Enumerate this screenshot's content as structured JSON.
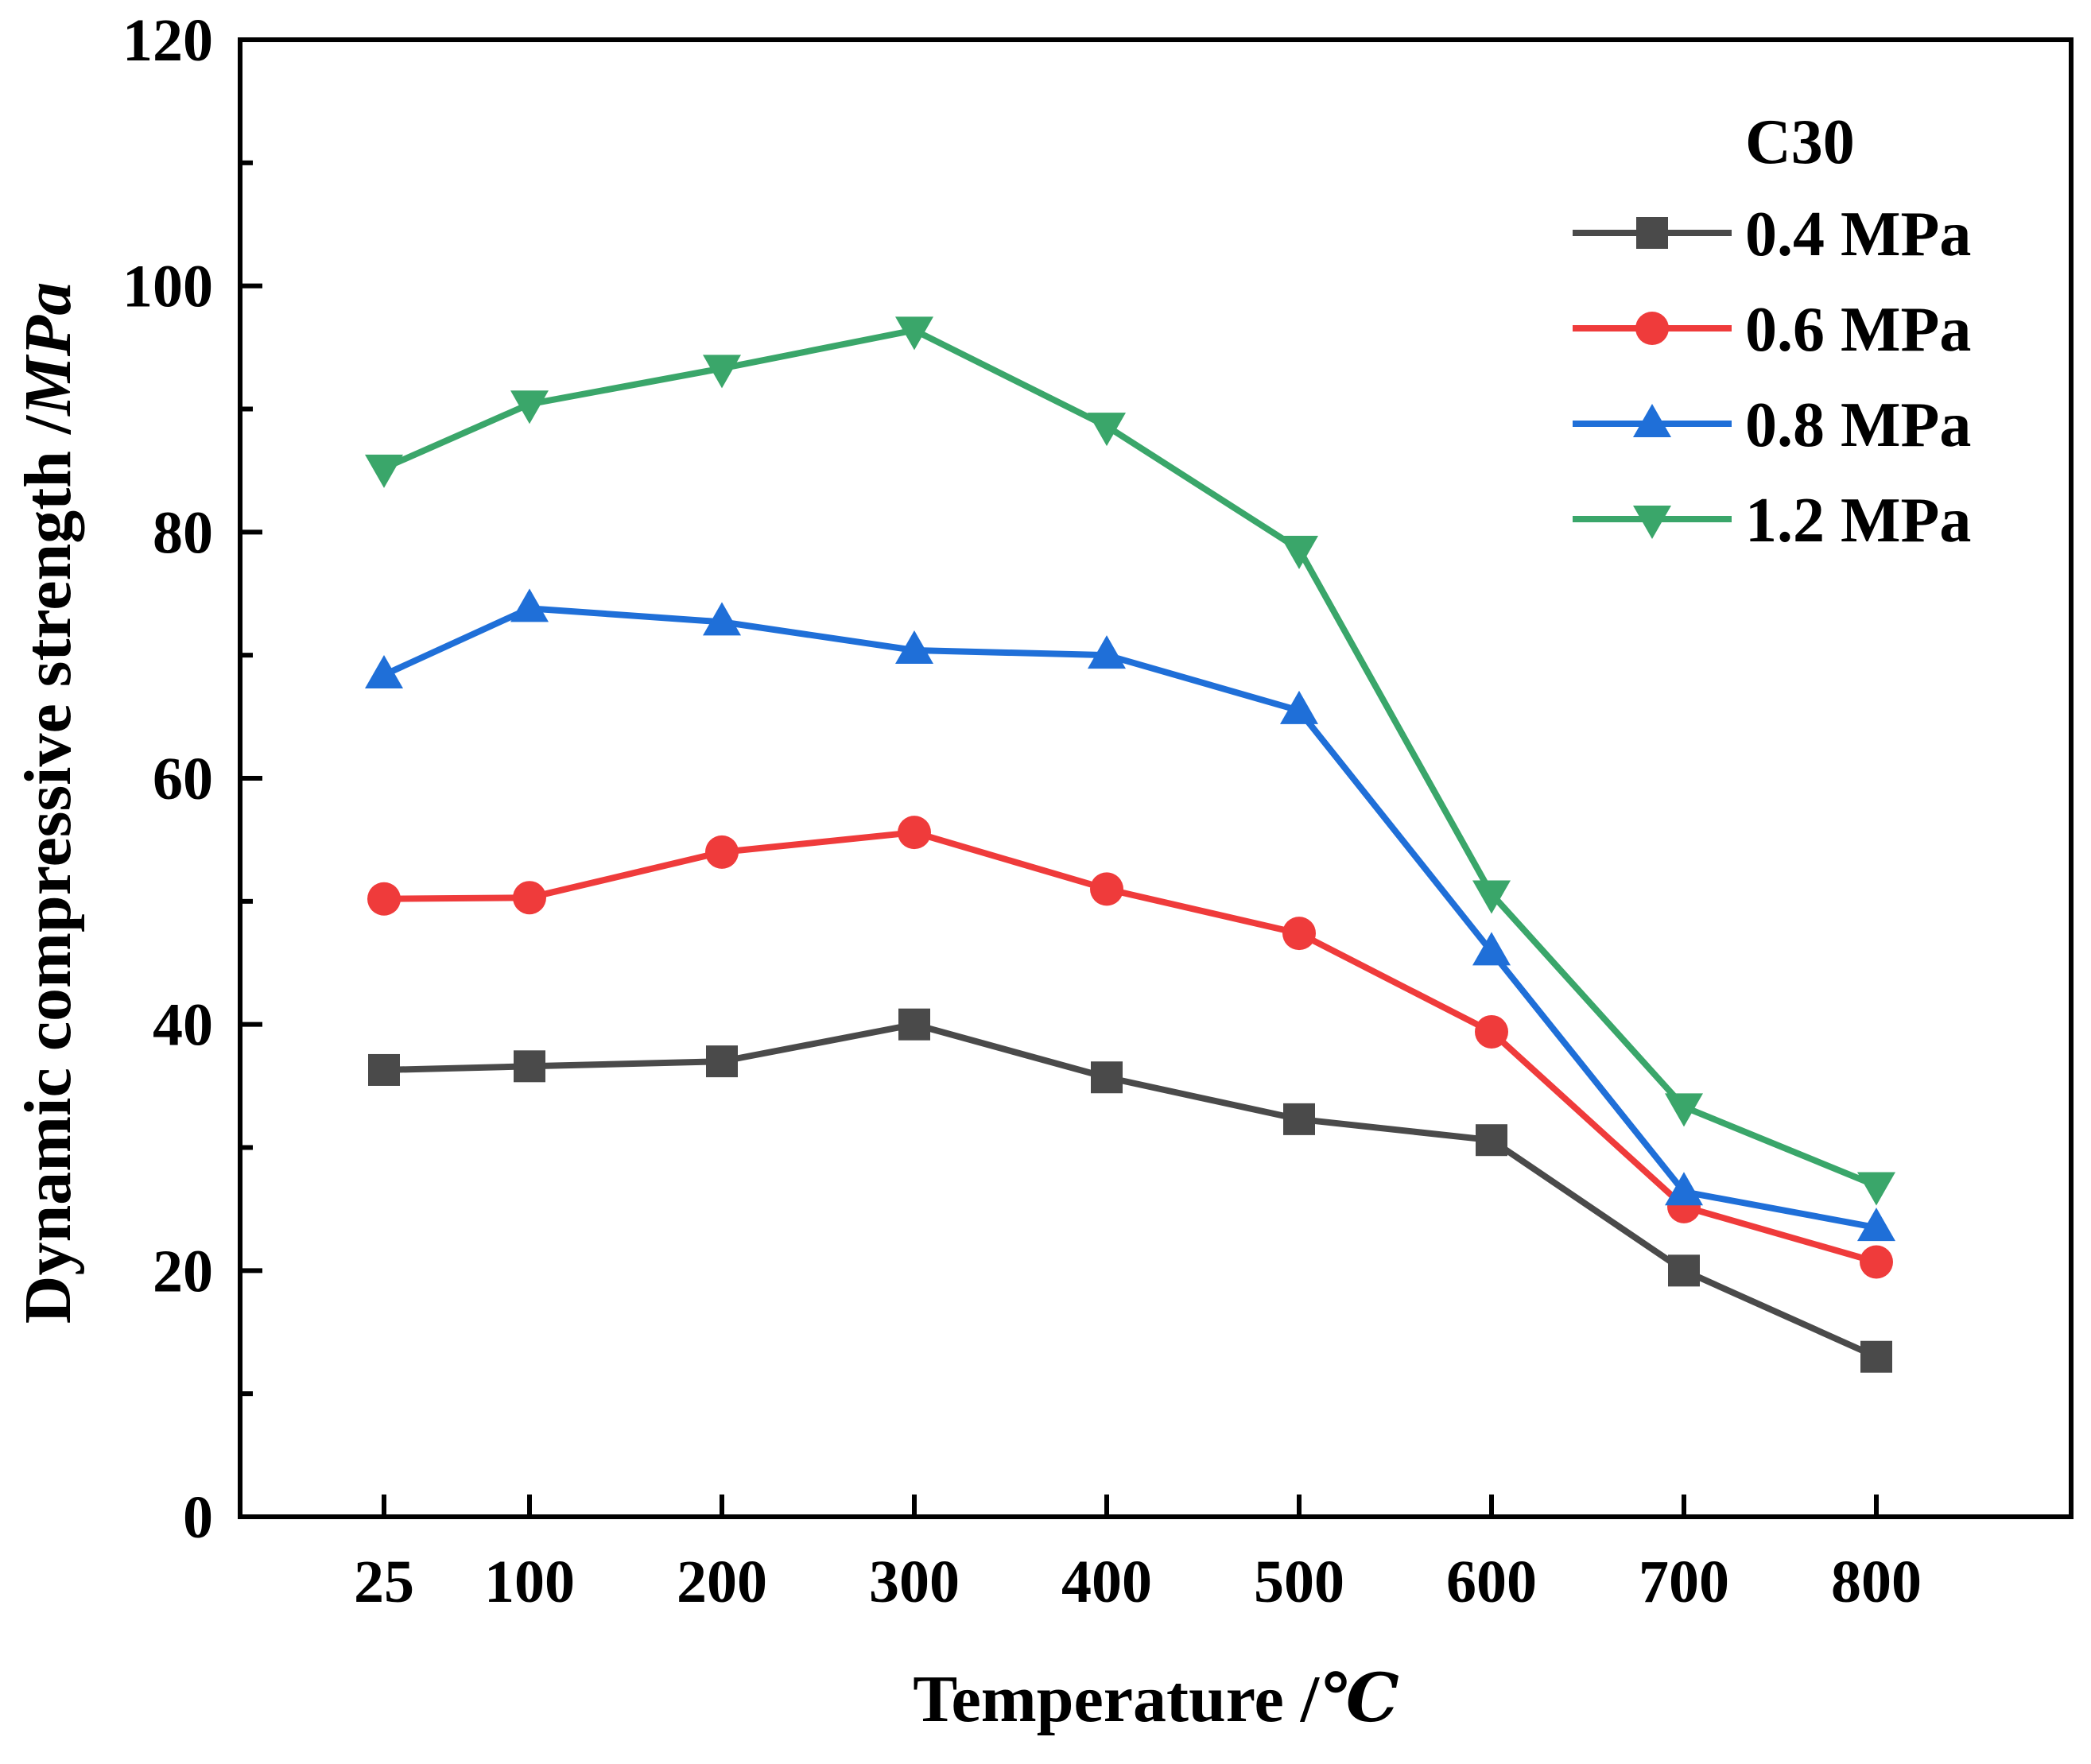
{
  "chart_data": {
    "type": "line",
    "title": "",
    "xlabel": "Temperature /℃",
    "xlabel_main": "Temperature /",
    "xlabel_unit": "℃",
    "ylabel": "Dynamic compressive strength /MPa",
    "ylabel_main": "Dynamic compressive strength /",
    "ylabel_unit": "MPa",
    "x": [
      25,
      100,
      200,
      300,
      400,
      500,
      600,
      700,
      800
    ],
    "x_tick_labels": [
      "25",
      "100",
      "200",
      "300",
      "400",
      "500",
      "600",
      "700",
      "800"
    ],
    "xlim": [
      -50,
      900
    ],
    "ylim": [
      0,
      120
    ],
    "y_tick_labels": [
      "0",
      "20",
      "40",
      "60",
      "80",
      "100",
      "120"
    ],
    "y_ticks": [
      0,
      20,
      40,
      60,
      80,
      100,
      120
    ],
    "legend_title": "C30",
    "legend_position": "top-right",
    "series": [
      {
        "name": "0.4 MPa",
        "color": "#4a4a4a",
        "marker": "square",
        "values": [
          36.3,
          36.6,
          37.0,
          40.0,
          35.7,
          32.3,
          30.6,
          20.0,
          13.0
        ]
      },
      {
        "name": "0.6 MPa",
        "color": "#ef3b3b",
        "marker": "circle",
        "values": [
          50.2,
          50.3,
          54.0,
          55.6,
          51.0,
          47.4,
          39.4,
          25.2,
          20.7
        ]
      },
      {
        "name": "0.8 MPa",
        "color": "#1f6fd8",
        "marker": "triangle-up",
        "values": [
          68.4,
          73.8,
          72.7,
          70.4,
          70.0,
          65.5,
          45.9,
          26.4,
          23.5
        ]
      },
      {
        "name": "1.2 MPa",
        "color": "#3aa66a",
        "marker": "triangle-down",
        "values": [
          85.2,
          90.4,
          93.3,
          96.4,
          88.6,
          78.6,
          50.6,
          33.3,
          26.9
        ]
      }
    ]
  }
}
